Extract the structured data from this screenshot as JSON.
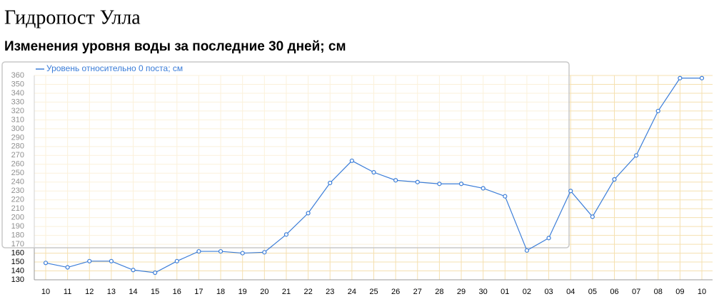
{
  "chart_data": {
    "type": "line",
    "title": "Гидропост Улла",
    "subtitle": "Изменения уровня воды за последние 30 дней; см",
    "categories": [
      "10",
      "11",
      "12",
      "13",
      "14",
      "15",
      "16",
      "17",
      "18",
      "19",
      "20",
      "21",
      "22",
      "23",
      "24",
      "25",
      "26",
      "27",
      "28",
      "29",
      "30",
      "01",
      "02",
      "03",
      "04",
      "05",
      "06",
      "07",
      "08",
      "09",
      "10"
    ],
    "series": [
      {
        "name": "Уровень относительно 0 поста; см",
        "color": "#3b7dd8",
        "values": [
          149,
          144,
          151,
          151,
          141,
          138,
          151,
          162,
          162,
          160,
          161,
          181,
          205,
          239,
          264,
          251,
          242,
          240,
          238,
          238,
          233,
          224,
          163,
          177,
          230,
          201,
          243,
          270,
          320,
          357,
          357
        ]
      }
    ],
    "ylim": [
      130,
      360
    ],
    "yticks": [
      130,
      140,
      150,
      160,
      170,
      180,
      190,
      200,
      210,
      220,
      230,
      240,
      250,
      260,
      270,
      280,
      290,
      300,
      310,
      320,
      330,
      340,
      350,
      360
    ],
    "grid": true,
    "legend": "upper left"
  }
}
